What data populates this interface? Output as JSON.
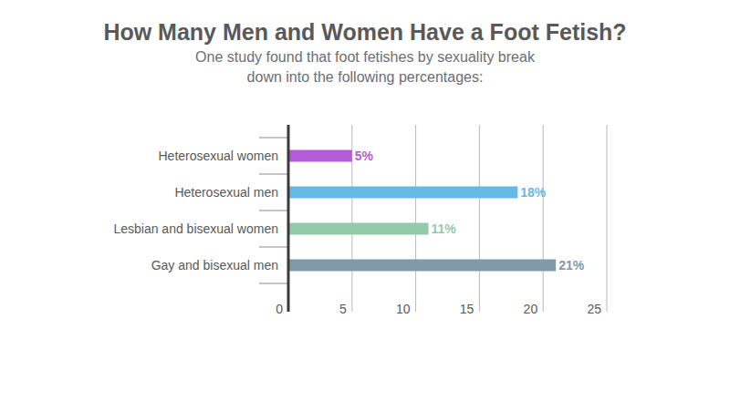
{
  "chart_data": {
    "type": "bar",
    "orientation": "horizontal",
    "title": "How Many Men and Women Have a Foot Fetish?",
    "subtitle": "One study found that foot fetishes by sexuality break down into the following percentages:",
    "categories": [
      "Heterosexual women",
      "Heterosexual men",
      "Lesbian and bisexual women",
      "Gay and bisexual men"
    ],
    "values": [
      5,
      18,
      11,
      21
    ],
    "value_labels": [
      "5%",
      "18%",
      "11%",
      "21%"
    ],
    "colors": [
      "#b55bd8",
      "#66b8e6",
      "#93caa8",
      "#8299a8"
    ],
    "xlim": [
      0,
      25
    ],
    "xticks": [
      0,
      5,
      10,
      15,
      20,
      25
    ],
    "grid": true,
    "data_labels": true
  }
}
